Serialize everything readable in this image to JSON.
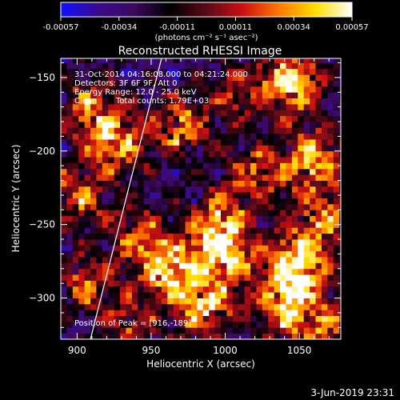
{
  "colorbar": {
    "tick_labels": [
      "-0.00057",
      "-0.00034",
      "-0.00011",
      "0.00011",
      "0.00034",
      "0.00057"
    ],
    "unit_label": "(photons cm⁻² s⁻¹ asec⁻²)",
    "range": [
      -0.00057,
      0.00057
    ],
    "colormap": [
      "#1010ff",
      "#3a0a8f",
      "#3d0a5e",
      "#000000",
      "#5a0a1a",
      "#cc1010",
      "#ff7a00",
      "#ffdd00",
      "#ffffff"
    ]
  },
  "chart_data": {
    "type": "heatmap",
    "title": "Reconstructed RHESSI Image",
    "xlabel": "Heliocentric X (arcsec)",
    "ylabel": "Heliocentric Y (arcsec)",
    "xlim": [
      889,
      1078
    ],
    "ylim": [
      -328,
      -137
    ],
    "x_ticks": [
      900,
      950,
      1000,
      1050
    ],
    "y_ticks": [
      -150,
      -200,
      -250,
      -300
    ],
    "x_tick_labels": [
      "900",
      "950",
      "1000",
      "1050"
    ],
    "y_tick_labels": [
      "−150",
      "−200",
      "−250",
      "−300"
    ],
    "limb_line": [
      [
        909,
        -328
      ],
      [
        957,
        -137
      ]
    ],
    "peak": [
      916,
      -189
    ],
    "hot_spots": [
      {
        "x": 1048,
        "y": -278,
        "intensity": 1.0
      },
      {
        "x": 1045,
        "y": -152,
        "intensity": 0.85
      },
      {
        "x": 1060,
        "y": -205,
        "intensity": 0.75
      },
      {
        "x": 1040,
        "y": -305,
        "intensity": 0.7
      },
      {
        "x": 985,
        "y": -305,
        "intensity": 0.8
      },
      {
        "x": 960,
        "y": -280,
        "intensity": 0.75
      },
      {
        "x": 995,
        "y": -250,
        "intensity": 0.65
      },
      {
        "x": 1000,
        "y": -270,
        "intensity": 0.7
      },
      {
        "x": 970,
        "y": -182,
        "intensity": 0.65
      },
      {
        "x": 925,
        "y": -195,
        "intensity": 0.7
      },
      {
        "x": 910,
        "y": -170,
        "intensity": 0.6
      },
      {
        "x": 900,
        "y": -230,
        "intensity": 0.55
      },
      {
        "x": 905,
        "y": -290,
        "intensity": 0.5
      },
      {
        "x": 940,
        "y": -255,
        "intensity": 0.5
      },
      {
        "x": 1010,
        "y": -160,
        "intensity": 0.45
      },
      {
        "x": 1020,
        "y": -215,
        "intensity": 0.55
      },
      {
        "x": 1065,
        "y": -245,
        "intensity": 0.6
      },
      {
        "x": 1070,
        "y": -320,
        "intensity": 0.55
      },
      {
        "x": 935,
        "y": -320,
        "intensity": 0.45
      }
    ],
    "info": {
      "time": "31-Oct-2014 04:16:08.000 to 04:21:24.000",
      "detectors": "Detectors: 3F 6F 9F, Att 0",
      "energy": "Energy Range: 12.0 - 25.0 keV",
      "clean": "Clean",
      "counts": "Total counts: 1.79E+03",
      "peak_text": "Position of Peak = [916,-189]"
    }
  },
  "footer": {
    "date": "3-Jun-2019 23:31"
  }
}
